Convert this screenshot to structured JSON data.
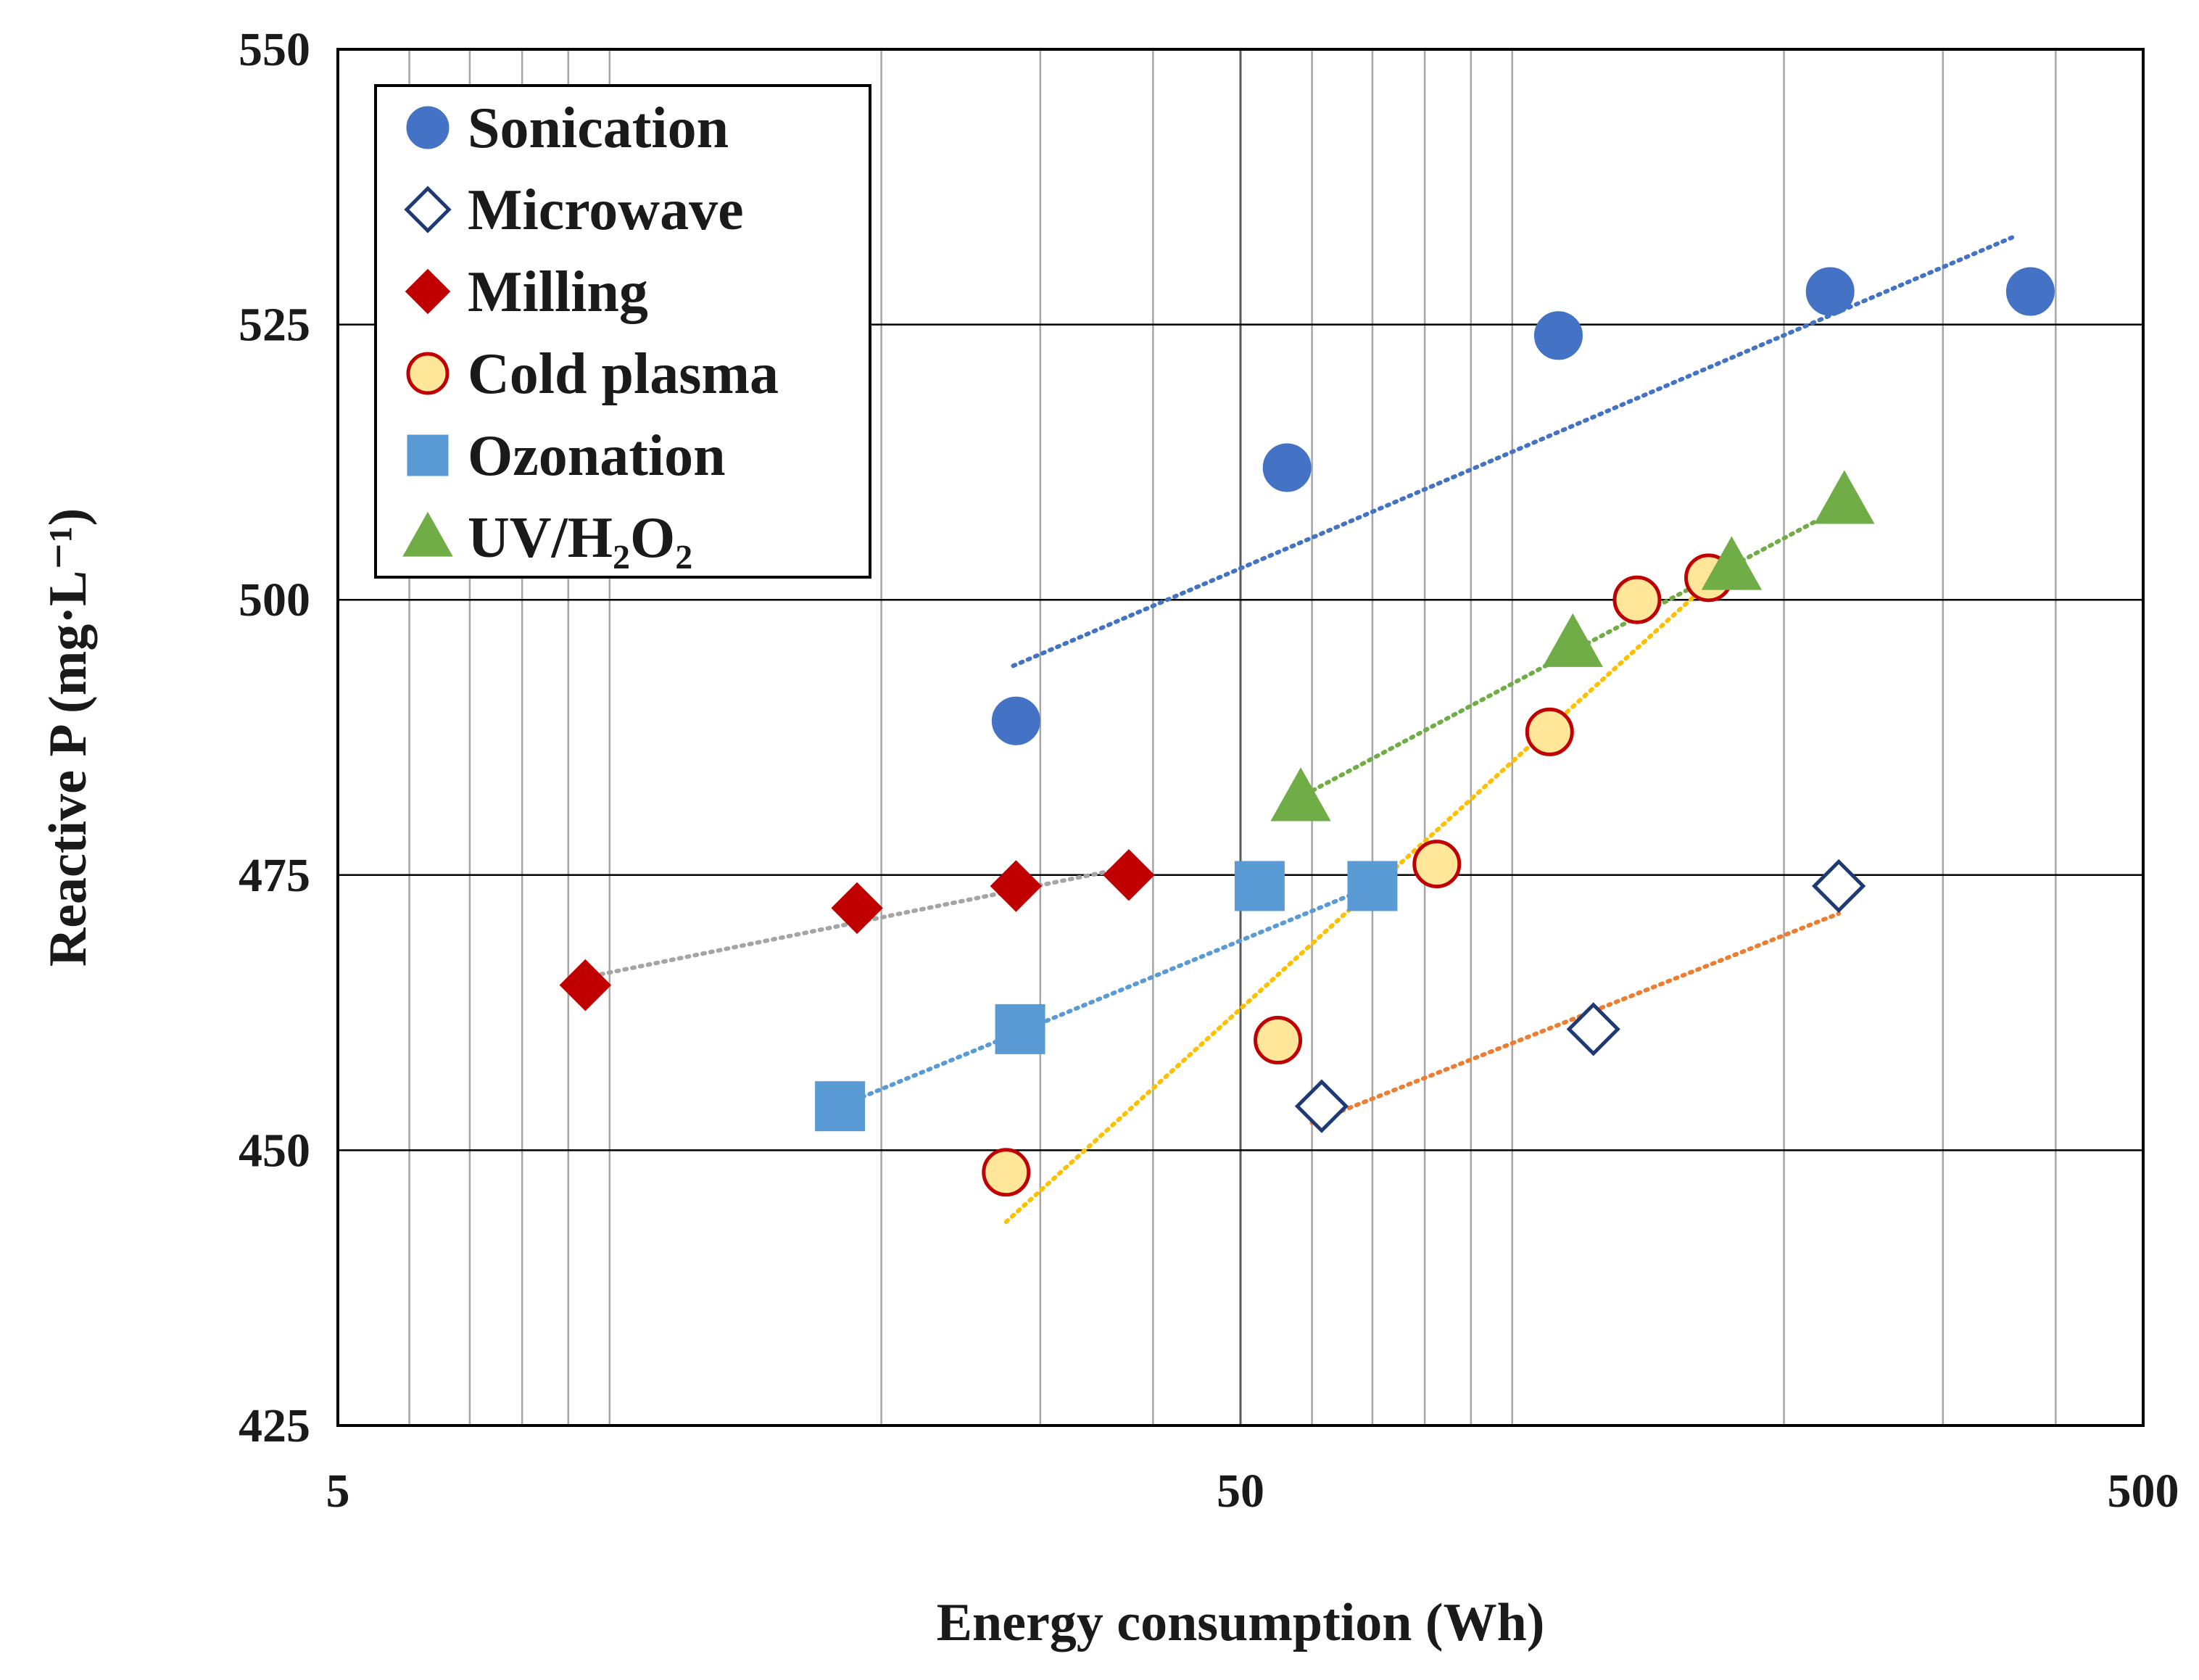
{
  "chart_data": {
    "type": "scatter",
    "title": "",
    "xlabel": "Energy consumption (Wh)",
    "ylabel": "Reactive P (mg·L⁻¹)",
    "xscale": "log",
    "xlim": [
      5,
      500
    ],
    "ylim": [
      425,
      550
    ],
    "x_ticks": [
      "5",
      "50",
      "500"
    ],
    "y_ticks": [
      "425",
      "450",
      "475",
      "500",
      "525",
      "550"
    ],
    "grid": true,
    "legend_position": "top-left",
    "series": [
      {
        "name": "Sonication",
        "marker": "circle",
        "filled": true,
        "color": "#4472C4",
        "edge": "#4472C4",
        "trend_color": "#4472C4",
        "x": [
          28.2,
          56.3,
          112.5,
          225,
          375
        ],
        "y": [
          489,
          512,
          524,
          528,
          528
        ],
        "trend": {
          "x": [
            28,
            360
          ],
          "y": [
            494,
            533
          ]
        }
      },
      {
        "name": "Microwave",
        "marker": "diamond",
        "filled": false,
        "color": "#ffffff",
        "edge": "#1F3A73",
        "trend_color": "#ED7D31",
        "x": [
          61.5,
          123,
          230
        ],
        "y": [
          454,
          461,
          474
        ],
        "trend": {
          "x": [
            60,
            230
          ],
          "y": [
            452.5,
            471.5
          ]
        }
      },
      {
        "name": "Milling",
        "marker": "diamond",
        "filled": true,
        "color": "#C00000",
        "edge": "#C00000",
        "trend_color": "#A5A5A5",
        "x": [
          9.4,
          18.8,
          28.2,
          37.6
        ],
        "y": [
          465,
          472,
          474,
          475
        ],
        "trend": {
          "x": [
            9.4,
            37.6
          ],
          "y": [
            465.7,
            475.7
          ]
        }
      },
      {
        "name": "Cold plasma",
        "marker": "circle",
        "filled": true,
        "color": "#FFE699",
        "edge": "#C00000",
        "trend_color": "#FFC000",
        "x": [
          27.5,
          55,
          82.5,
          110,
          137.5,
          165
        ],
        "y": [
          448,
          460,
          476,
          488,
          500,
          502
        ],
        "trend": {
          "x": [
            27.5,
            165
          ],
          "y": [
            443.5,
            501.5
          ]
        }
      },
      {
        "name": "Ozonation",
        "marker": "square",
        "filled": true,
        "color": "#5B9BD5",
        "edge": "#5B9BD5",
        "trend_color": "#5B9BD5",
        "x": [
          18,
          28.5,
          52.5,
          70
        ],
        "y": [
          454,
          461,
          474,
          474
        ],
        "trend": {
          "x": [
            18,
            70
          ],
          "y": [
            454,
            474
          ]
        }
      },
      {
        "name": "UV/H₂O₂",
        "marker": "triangle",
        "filled": true,
        "color": "#70AD47",
        "edge": "#70AD47",
        "trend_color": "#70AD47",
        "x": [
          58.3,
          116.7,
          175,
          233.3
        ],
        "y": [
          482,
          496,
          503,
          509
        ],
        "trend": {
          "x": [
            58,
            233
          ],
          "y": [
            482,
            508.5
          ]
        }
      }
    ]
  }
}
